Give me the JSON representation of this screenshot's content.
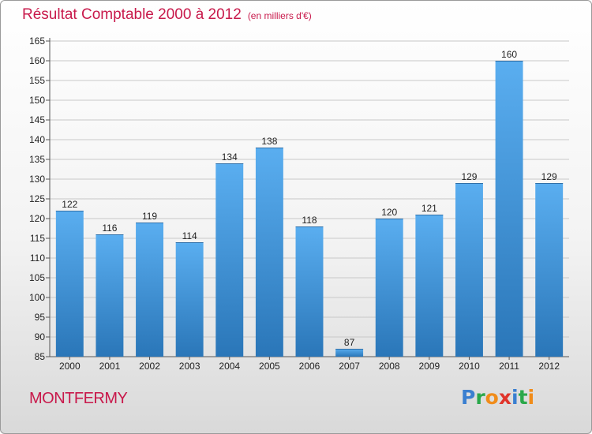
{
  "header": {
    "title": "Résultat Comptable 2000 à 2012",
    "subtitle": "(en milliers d'€)"
  },
  "footer": {
    "city": "MONTFERMY",
    "logo_text": "Proxiti",
    "logo_letters": [
      {
        "ch": "P",
        "color": "#3a7fd0"
      },
      {
        "ch": "r",
        "color": "#2aa84a"
      },
      {
        "ch": "o",
        "color": "#f08c1a"
      },
      {
        "ch": "x",
        "color": "#e0342b"
      },
      {
        "ch": "i",
        "color": "#3a7fd0"
      },
      {
        "ch": "t",
        "color": "#2aa84a"
      },
      {
        "ch": "i",
        "color": "#f08c1a"
      }
    ]
  },
  "colors": {
    "accent": "#c8194b",
    "bar_top": "#5aaef0",
    "bar_bottom": "#2a76b8"
  },
  "chart_data": {
    "type": "bar",
    "title": "Résultat Comptable 2000 à 2012",
    "subtitle": "(en milliers d'€)",
    "xlabel": "",
    "ylabel": "",
    "categories": [
      "2000",
      "2001",
      "2002",
      "2003",
      "2004",
      "2005",
      "2006",
      "2007",
      "2008",
      "2009",
      "2010",
      "2011",
      "2012"
    ],
    "values": [
      122,
      116,
      119,
      114,
      134,
      138,
      118,
      87,
      120,
      121,
      129,
      160,
      129
    ],
    "ylim": [
      85,
      165
    ],
    "yticks": [
      85,
      90,
      95,
      100,
      105,
      110,
      115,
      120,
      125,
      130,
      135,
      140,
      145,
      150,
      155,
      160,
      165
    ],
    "grid": true
  }
}
